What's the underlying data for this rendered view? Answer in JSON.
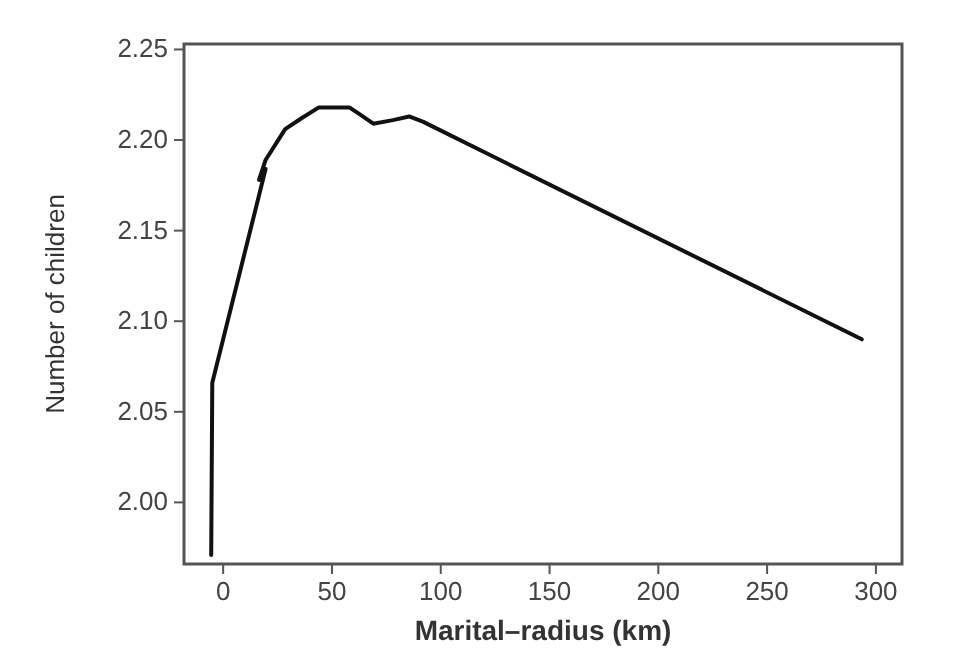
{
  "chart_data": {
    "type": "line",
    "xlabel": "Marital–radius (km)",
    "ylabel": "Number of children",
    "x": [
      -5.5,
      -5,
      19.5,
      16.5,
      19.5,
      28.5,
      36,
      44,
      58,
      63,
      69,
      78,
      85.5,
      92,
      293.5
    ],
    "series": [
      {
        "color": "#111111",
        "values": [
          1.971,
          2.066,
          2.184,
          2.178,
          2.189,
          2.206,
          2.212,
          2.218,
          2.218,
          2.214,
          2.209,
          2.211,
          2.213,
          2.21,
          2.09
        ]
      }
    ],
    "xlim": [
      -18,
      312
    ],
    "ylim": [
      1.966,
      2.253
    ],
    "xticks": [
      0,
      50,
      100,
      150,
      200,
      250,
      300
    ],
    "yticks": [
      {
        "value": 2.0,
        "label": "2.00"
      },
      {
        "value": 2.05,
        "label": "2.05"
      },
      {
        "value": 2.1,
        "label": "2.10"
      },
      {
        "value": 2.15,
        "label": "2.15"
      },
      {
        "value": 2.2,
        "label": "2.20"
      },
      {
        "value": 2.25,
        "label": "2.25"
      }
    ],
    "grid": false,
    "marker": "none",
    "line_style": "solid"
  }
}
